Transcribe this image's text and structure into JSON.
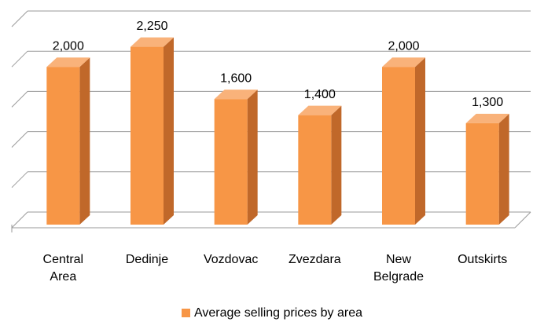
{
  "chart_data": {
    "type": "bar3d",
    "categories": [
      "Central Area",
      "Dedinje",
      "Vozdovac",
      "Zvezdara",
      "New Belgrade",
      "Outskirts"
    ],
    "series": [
      {
        "name": "Average selling prices by area",
        "color": "#f79646",
        "values": [
          2000,
          2250,
          1600,
          1400,
          2000,
          1300
        ],
        "value_labels": [
          "2,000",
          "2,250",
          "1,600",
          "1,400",
          "2,000",
          "1,300"
        ]
      }
    ],
    "ylim": [
      0,
      2500
    ],
    "yticks": [
      0,
      500,
      1000,
      1500,
      2000,
      2500
    ],
    "grid": true,
    "legend": "bottom"
  }
}
